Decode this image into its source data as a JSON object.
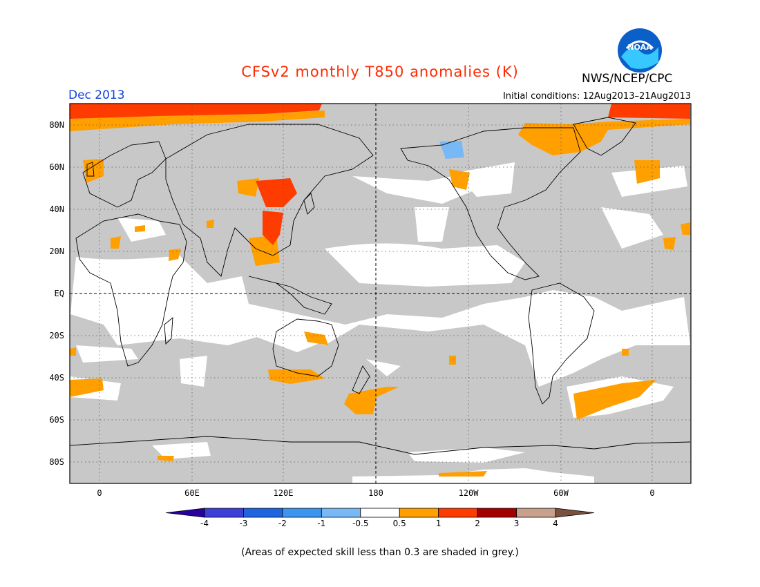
{
  "title": "CFSv2 monthly T850 anomalies (K)",
  "organization": "NWS/NCEP/CPC",
  "logo_text": "NOAA",
  "valid_month": "Dec 2013",
  "initial_conditions": "Initial conditions: 12Aug2013–21Aug2013",
  "footnote": "(Areas of expected skill less than 0.3 are shaded in grey.)",
  "axes": {
    "lat_labels": [
      "80N",
      "60N",
      "40N",
      "20N",
      "EQ",
      "20S",
      "40S",
      "60S",
      "80S"
    ],
    "lon_labels": [
      "0",
      "60E",
      "120E",
      "180",
      "120W",
      "60W",
      "0"
    ]
  },
  "colors": {
    "low_skill": "#c8c8c8",
    "ocean_skill": "#ffffff",
    "anom_0_5_to_1": "#ff9f00",
    "anom_1_to_2": "#ff3c00"
  },
  "colorbar": {
    "labels": [
      "-4",
      "-3",
      "-2",
      "-1",
      "-0.5",
      "0.5",
      "1",
      "2",
      "3",
      "4"
    ],
    "colors": [
      "#2a00a0",
      "#3e3ed8",
      "#1e64e0",
      "#3c96f0",
      "#78b9f5",
      "#ffffff",
      "#ff9f00",
      "#ff3c00",
      "#a50000",
      "#c8a08c",
      "#7a5040"
    ]
  }
}
